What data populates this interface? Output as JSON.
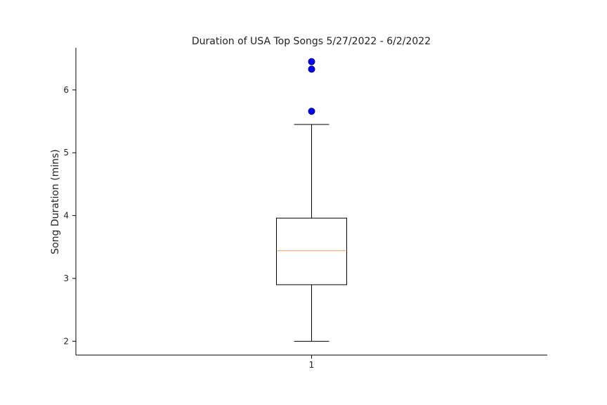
{
  "chart_data": {
    "type": "box",
    "title": "Duration of USA Top Songs 5/27/2022 - 6/2/2022",
    "xlabel": "",
    "ylabel": "Song Duration (mins)",
    "categories": [
      "1"
    ],
    "ylim": [
      1.78,
      6.67
    ],
    "yticks": [
      "2",
      "3",
      "4",
      "5",
      "6"
    ],
    "grid": false,
    "boxes": [
      {
        "category": "1",
        "whisker_low": 2.0,
        "q1": 2.9,
        "median": 3.44,
        "q3": 3.96,
        "whisker_high": 5.45,
        "outliers": [
          5.66,
          6.33,
          6.45
        ]
      }
    ],
    "colors": {
      "box": "#000000",
      "median": "#e8a36b",
      "outlier_fill": "#0000ff",
      "outlier_edge": "#000066"
    }
  }
}
